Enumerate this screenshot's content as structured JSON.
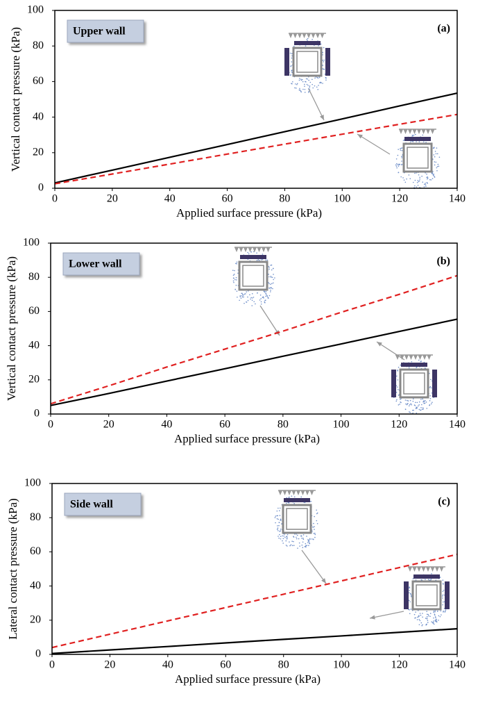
{
  "chart_data": [
    {
      "type": "line",
      "label": "Upper wall",
      "panel_label": "(a)",
      "xlabel": "Applied surface pressure (kPa)",
      "ylabel": "Vertical contact pressure (kPa)",
      "x": [
        0,
        20,
        40,
        60,
        80,
        100,
        120,
        140
      ],
      "series": [
        {
          "color": "#000000",
          "dash": false,
          "values": [
            3,
            10.2,
            17.4,
            24.6,
            31.8,
            39,
            46.3,
            53.5
          ]
        },
        {
          "color": "#e02020",
          "dash": true,
          "values": [
            2.5,
            8,
            13.6,
            19.2,
            24.8,
            30.4,
            36,
            41.5
          ]
        }
      ],
      "xlim": [
        0,
        140
      ],
      "ylim": [
        0,
        100
      ],
      "xticks": [
        0,
        20,
        40,
        60,
        80,
        100,
        120,
        140
      ],
      "yticks": [
        0,
        20,
        40,
        60,
        80,
        100
      ]
    },
    {
      "type": "line",
      "label": "Lower wall",
      "panel_label": "(b)",
      "xlabel": "Applied surface pressure (kPa)",
      "ylabel": "Vertical contact pressure (kPa)",
      "x": [
        0,
        20,
        40,
        60,
        80,
        100,
        120,
        140
      ],
      "series": [
        {
          "color": "#000000",
          "dash": false,
          "values": [
            5,
            12,
            19.3,
            26.5,
            33.8,
            41,
            48.3,
            55.5
          ]
        },
        {
          "color": "#e02020",
          "dash": true,
          "values": [
            6,
            16.5,
            27.5,
            38,
            48.5,
            59.5,
            70,
            81
          ]
        }
      ],
      "xlim": [
        0,
        140
      ],
      "ylim": [
        0,
        100
      ],
      "xticks": [
        0,
        20,
        40,
        60,
        80,
        100,
        120,
        140
      ],
      "yticks": [
        0,
        20,
        40,
        60,
        80,
        100
      ]
    },
    {
      "type": "line",
      "label": "Side wall",
      "panel_label": "(c)",
      "xlabel": "Applied surface pressure (kPa)",
      "ylabel": "Lateral contact pressure (kPa)",
      "x": [
        0,
        20,
        40,
        60,
        80,
        100,
        120,
        140
      ],
      "series": [
        {
          "color": "#000000",
          "dash": false,
          "values": [
            0.5,
            2.6,
            4.6,
            6.7,
            8.8,
            10.8,
            12.9,
            15
          ]
        },
        {
          "color": "#e02020",
          "dash": true,
          "values": [
            4,
            11.8,
            19.6,
            27.4,
            35.2,
            43,
            50.8,
            58.5
          ]
        }
      ],
      "xlim": [
        0,
        140
      ],
      "ylim": [
        0,
        100
      ],
      "xticks": [
        0,
        20,
        40,
        60,
        80,
        100,
        120,
        140
      ],
      "yticks": [
        0,
        20,
        40,
        60,
        80,
        100
      ]
    }
  ]
}
